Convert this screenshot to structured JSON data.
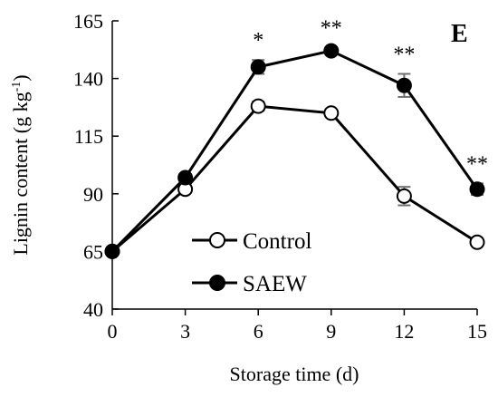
{
  "chart_data": {
    "type": "line",
    "panel_label": "E",
    "xlabel": "Storage time (d)",
    "ylabel_main": "Lignin content (g kg",
    "ylabel_sup": "-1",
    "ylabel_end": ")",
    "x": [
      0,
      3,
      6,
      9,
      12,
      15
    ],
    "x_ticks": [
      "0",
      "3",
      "6",
      "9",
      "12",
      "15"
    ],
    "y_ticks": [
      "40",
      "65",
      "90",
      "115",
      "140",
      "165"
    ],
    "ylim": [
      40,
      165
    ],
    "xlim": [
      0,
      15
    ],
    "grid": false,
    "legend_position": "bottom-center",
    "series": [
      {
        "name": "Control",
        "marker": "open-circle",
        "values": [
          65,
          92,
          128,
          125,
          89,
          69
        ],
        "errors": [
          0,
          0,
          2,
          0,
          4,
          0
        ]
      },
      {
        "name": "SAEW",
        "marker": "filled-circle",
        "values": [
          65,
          97,
          145,
          152,
          137,
          92
        ],
        "errors": [
          0,
          0,
          3,
          1.5,
          5,
          2.5
        ]
      }
    ],
    "significance": [
      {
        "x": 6,
        "label": "*"
      },
      {
        "x": 9,
        "label": "**"
      },
      {
        "x": 12,
        "label": "**"
      },
      {
        "x": 15,
        "label": "**"
      }
    ]
  }
}
